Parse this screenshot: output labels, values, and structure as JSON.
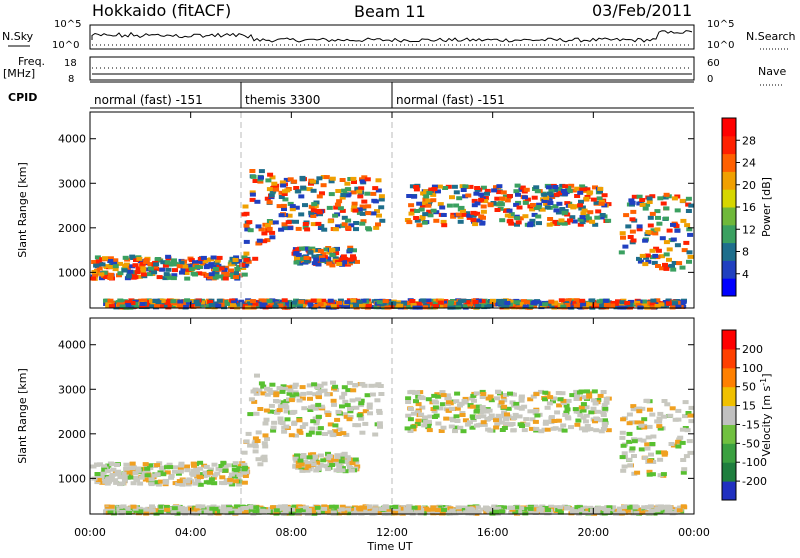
{
  "header": {
    "station": "Hokkaido (fitACF)",
    "beam": "Beam 11",
    "date": "03/Feb/2011"
  },
  "strip_labels": {
    "nsky": "N.Sky",
    "nsky_ticks": [
      "10^5",
      "10^0"
    ],
    "nsearch": "N.Search",
    "nsearch_ticks": [
      "10^5",
      "10^0"
    ],
    "freq_line1": "Freq.",
    "freq_line2": "[MHz]",
    "freq_ticks": [
      "18",
      "8"
    ],
    "nave": "Nave",
    "nave_ticks": [
      "60",
      "0"
    ],
    "cpid": "CPID"
  },
  "cpid_segments": [
    {
      "label": "normal (fast) -151",
      "start_hour": 0,
      "end_hour": 6
    },
    {
      "label": "themis 3300",
      "start_hour": 6,
      "end_hour": 12
    },
    {
      "label": "normal (fast) -151",
      "start_hour": 12,
      "end_hour": 24
    }
  ],
  "chart_data": [
    {
      "type": "heatmap",
      "name": "Power",
      "x_label": "Time UT",
      "y_label": "Slant Range [km]",
      "x_range": [
        "00:00",
        "24:00"
      ],
      "x_ticks": [
        "00:00",
        "04:00",
        "08:00",
        "12:00",
        "16:00",
        "20:00",
        "00:00"
      ],
      "y_range": [
        200,
        4600
      ],
      "y_ticks": [
        "1000",
        "2000",
        "3000",
        "4000"
      ],
      "colorbar": {
        "label": "Power [dB]",
        "ticks": [
          "28",
          "24",
          "20",
          "16",
          "12",
          "8",
          "4"
        ],
        "colors": [
          "#0000ff",
          "#2040c0",
          "#1e6e8c",
          "#3aa060",
          "#6fb83a",
          "#d6d600",
          "#f0a000",
          "#ff6000",
          "#ff2000",
          "#ff0000"
        ]
      }
    },
    {
      "type": "heatmap",
      "name": "Velocity",
      "x_label": "Time UT",
      "y_label": "Slant Range [km]",
      "x_range": [
        "00:00",
        "24:00"
      ],
      "x_ticks": [
        "00:00",
        "04:00",
        "08:00",
        "12:00",
        "16:00",
        "20:00",
        "00:00"
      ],
      "y_range": [
        200,
        4600
      ],
      "y_ticks": [
        "1000",
        "2000",
        "3000",
        "4000"
      ],
      "colorbar": {
        "label": "Velocity [m s",
        "label_sup": "-1",
        "label_end": "]",
        "ticks": [
          "200",
          "100",
          "50",
          "15",
          "-15",
          "-50",
          "-100",
          "-200"
        ],
        "colors": [
          "#2030c0",
          "#1e7e3e",
          "#3aa040",
          "#70c040",
          "#c0c0c0",
          "#f0c000",
          "#ff8000",
          "#ff4000",
          "#ff0000"
        ]
      }
    }
  ],
  "colors": {
    "ground": "#c8c8c0",
    "green": "#58c030",
    "orange": "#f0a020"
  }
}
